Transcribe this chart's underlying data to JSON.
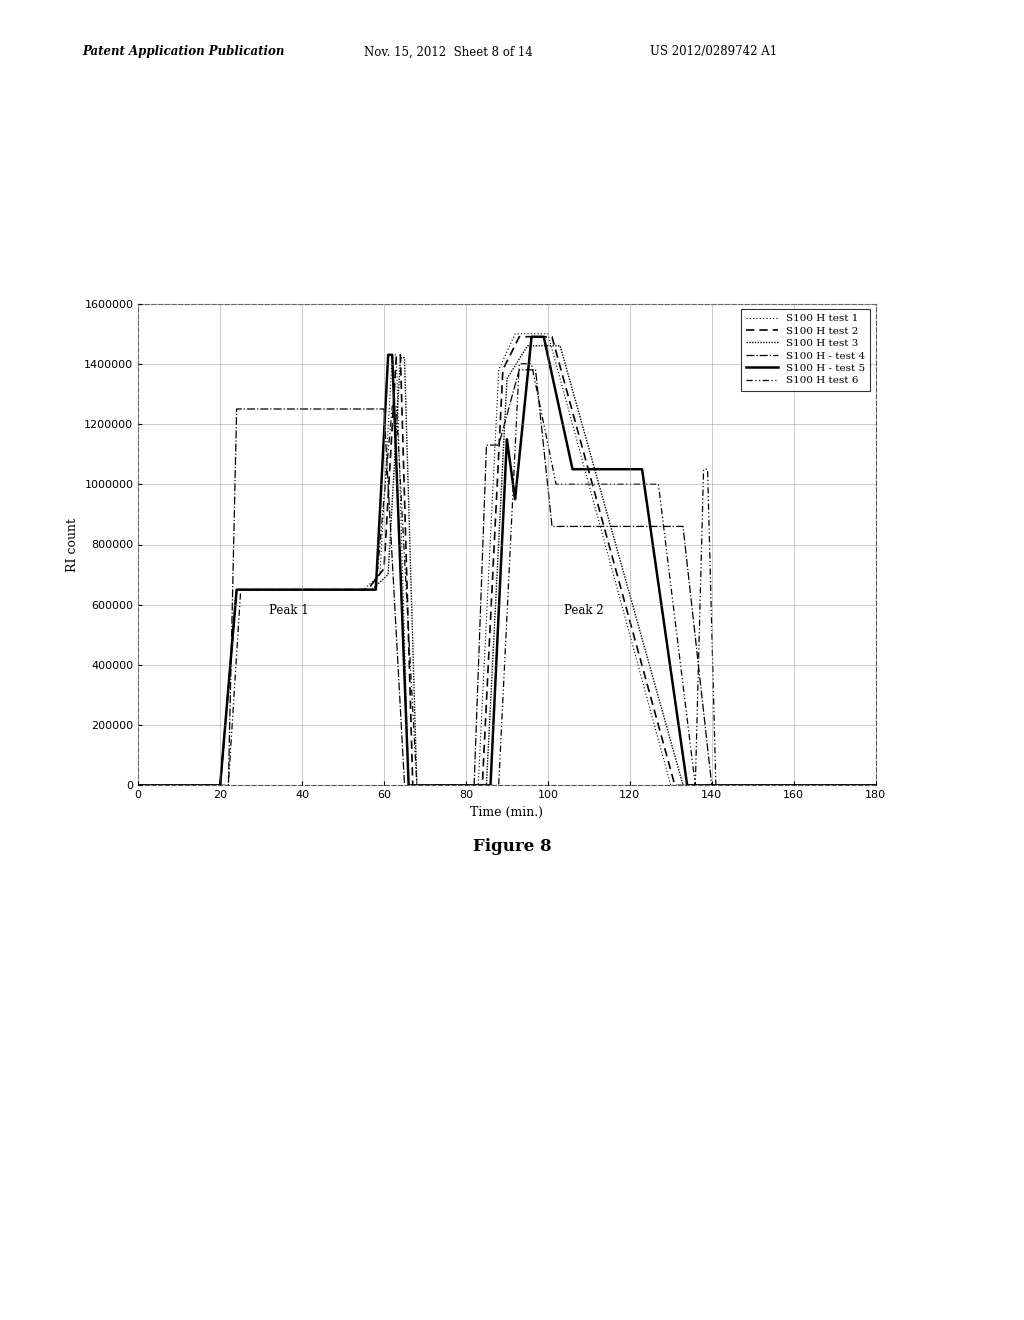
{
  "xlabel": "Time (min.)",
  "ylabel": "RI count",
  "xlim": [
    0,
    180
  ],
  "ylim": [
    0,
    1600000
  ],
  "xticks": [
    0,
    20,
    40,
    60,
    80,
    100,
    120,
    140,
    160,
    180
  ],
  "yticks": [
    0,
    200000,
    400000,
    600000,
    800000,
    1000000,
    1200000,
    1400000,
    1600000
  ],
  "header_left": "Patent Application Publication",
  "header_center": "Nov. 15, 2012  Sheet 8 of 14",
  "header_right": "US 2012/0289742 A1",
  "figure_label": "Figure 8",
  "peak1_label": "Peak 1",
  "peak1_x": 32,
  "peak1_y": 570000,
  "peak2_label": "Peak 2",
  "peak2_x": 104,
  "peak2_y": 570000,
  "background_color": "#ffffff"
}
